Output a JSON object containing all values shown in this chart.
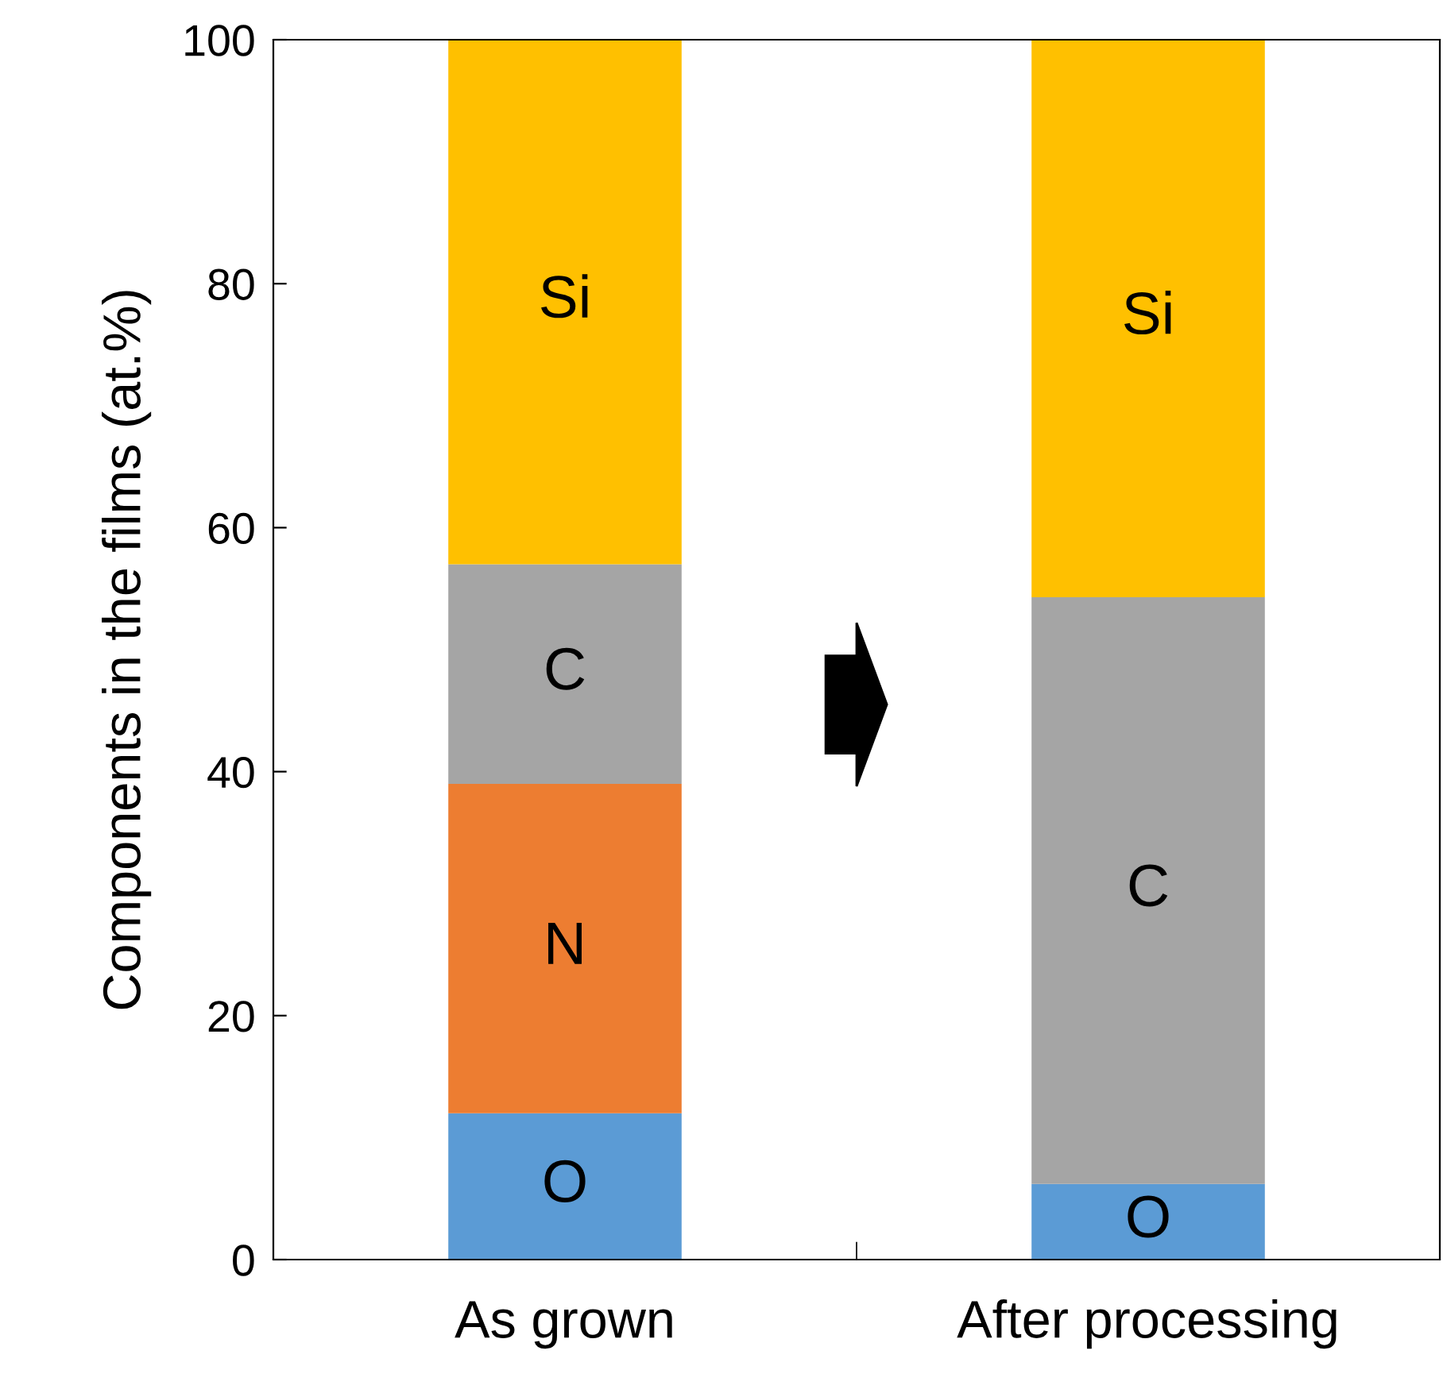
{
  "chart_data": {
    "type": "bar",
    "stacked": true,
    "ylabel": "Components in the films (at.%)",
    "categories": [
      "As grown",
      "After processing"
    ],
    "series": [
      {
        "name": "O",
        "color": "#5b9bd5",
        "values": [
          12,
          6.2
        ]
      },
      {
        "name": "N",
        "color": "#ed7d31",
        "values": [
          27,
          0
        ]
      },
      {
        "name": "C",
        "color": "#a5a5a5",
        "values": [
          18,
          48.1
        ]
      },
      {
        "name": "Si",
        "color": "#ffc000",
        "values": [
          43,
          45.7
        ]
      }
    ],
    "ylim": [
      0,
      100
    ],
    "yticks": [
      0,
      20,
      40,
      60,
      80,
      100
    ],
    "grid": false,
    "legend": false
  }
}
